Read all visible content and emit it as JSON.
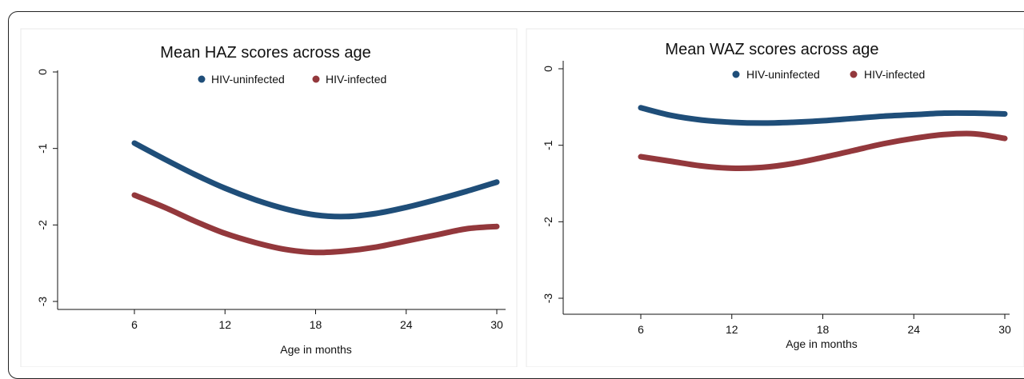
{
  "colors": {
    "uninfected": "#1f4e79",
    "infected": "#93383c",
    "axis": "#111111",
    "panel_border": "#e8e8e8"
  },
  "chart_data": [
    {
      "type": "line",
      "title": "Mean HAZ scores across age",
      "xlabel": "Age in months",
      "ylabel": "",
      "xlim": [
        0,
        30
      ],
      "ylim": [
        -3,
        0
      ],
      "xticks": [
        6,
        12,
        18,
        24,
        30
      ],
      "yticks": [
        0,
        -1,
        -2,
        -3
      ],
      "xtick_labels": [
        "6",
        "12",
        "18",
        "24",
        "30"
      ],
      "ytick_labels": [
        "0",
        "-1",
        "-2",
        "-3"
      ],
      "legend": [
        "HIV-uninfected",
        "HIV-infected"
      ],
      "legend_position": "top",
      "grid": false,
      "series": [
        {
          "name": "HIV-uninfected",
          "x": [
            6,
            8,
            10,
            12,
            14,
            16,
            18,
            20,
            22,
            24,
            26,
            28,
            30
          ],
          "y": [
            -0.93,
            -1.14,
            -1.34,
            -1.52,
            -1.67,
            -1.79,
            -1.87,
            -1.89,
            -1.85,
            -1.77,
            -1.67,
            -1.56,
            -1.44
          ]
        },
        {
          "name": "HIV-infected",
          "x": [
            6,
            8,
            10,
            12,
            14,
            16,
            18,
            20,
            22,
            24,
            26,
            28,
            30
          ],
          "y": [
            -1.61,
            -1.77,
            -1.95,
            -2.11,
            -2.23,
            -2.32,
            -2.36,
            -2.34,
            -2.29,
            -2.21,
            -2.13,
            -2.05,
            -2.02
          ]
        }
      ]
    },
    {
      "type": "line",
      "title": "Mean WAZ scores across age",
      "xlabel": "Age in months",
      "ylabel": "",
      "xlim": [
        0,
        30
      ],
      "ylim": [
        -3,
        0
      ],
      "xticks": [
        6,
        12,
        18,
        24,
        30
      ],
      "yticks": [
        0,
        -1,
        -2,
        -3
      ],
      "xtick_labels": [
        "6",
        "12",
        "18",
        "24",
        "30"
      ],
      "ytick_labels": [
        "0",
        "-1",
        "-2",
        "-3"
      ],
      "legend": [
        "HIV-uninfected",
        "HIV-infected"
      ],
      "legend_position": "top-right",
      "grid": false,
      "series": [
        {
          "name": "HIV-uninfected",
          "x": [
            6,
            8,
            10,
            12,
            14,
            16,
            18,
            20,
            22,
            24,
            26,
            28,
            30
          ],
          "y": [
            -0.51,
            -0.61,
            -0.67,
            -0.7,
            -0.71,
            -0.7,
            -0.68,
            -0.65,
            -0.62,
            -0.6,
            -0.58,
            -0.58,
            -0.59
          ]
        },
        {
          "name": "HIV-infected",
          "x": [
            6,
            8,
            10,
            12,
            14,
            16,
            18,
            20,
            22,
            24,
            26,
            28,
            30
          ],
          "y": [
            -1.15,
            -1.21,
            -1.27,
            -1.3,
            -1.29,
            -1.24,
            -1.16,
            -1.07,
            -0.98,
            -0.91,
            -0.86,
            -0.85,
            -0.91
          ]
        }
      ]
    }
  ]
}
